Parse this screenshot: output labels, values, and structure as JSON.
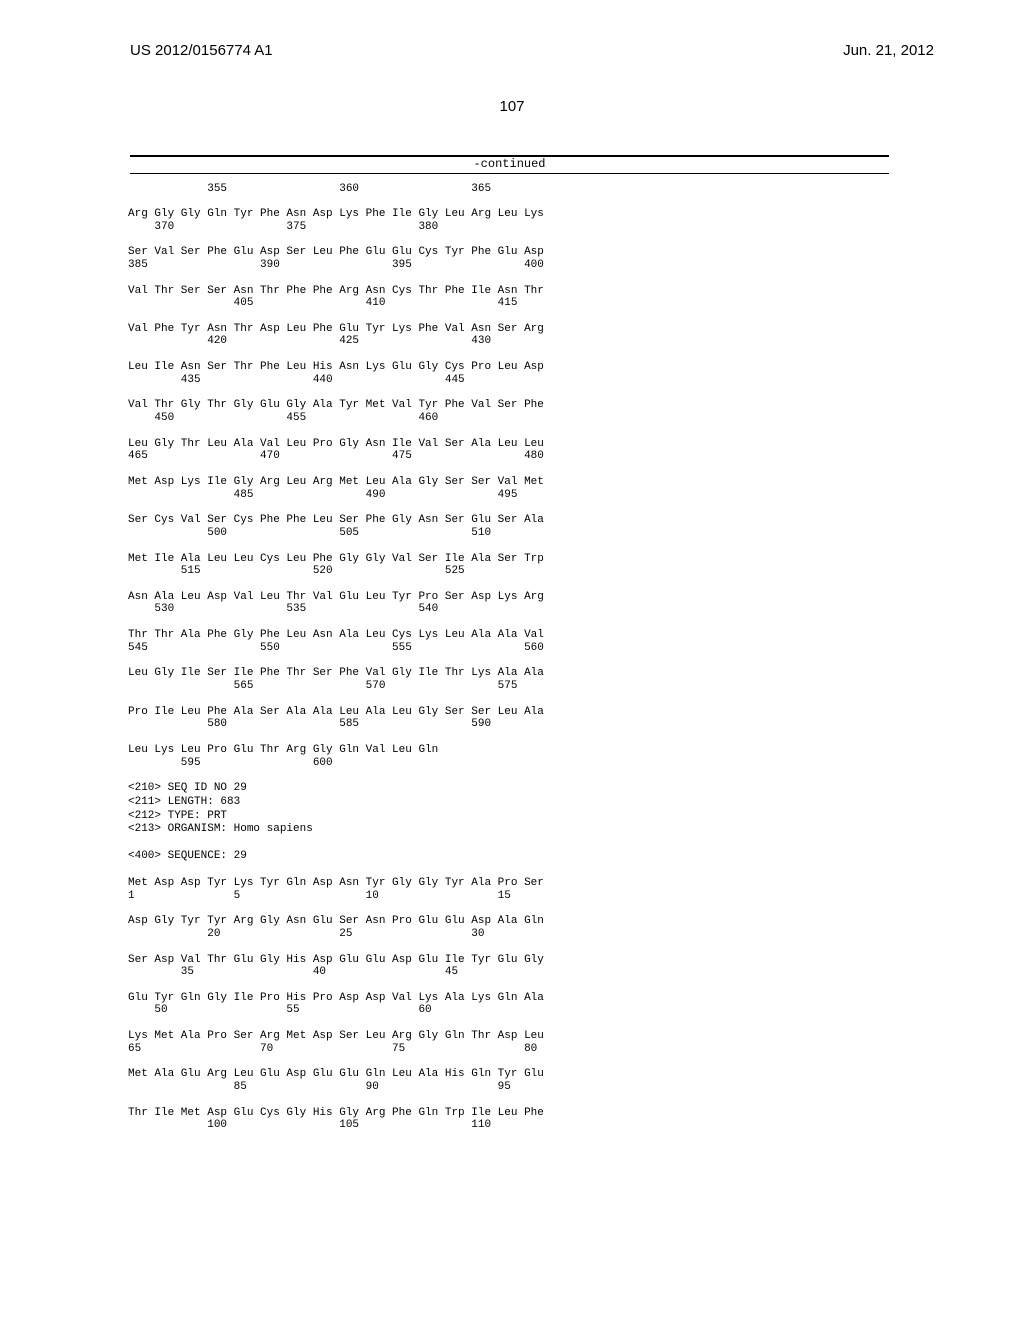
{
  "header": {
    "pub_number": "US 2012/0156774 A1",
    "pub_date": "Jun. 21, 2012"
  },
  "page_number": "107",
  "continued_label": "-continued",
  "sequence_blocks": [
    {
      "type": "numline",
      "line": "            355                 360                 365"
    },
    {
      "type": "seq",
      "aa": "Arg Gly Gly Gln Tyr Phe Asn Asp Lys Phe Ile Gly Leu Arg Leu Lys",
      "num": "    370                 375                 380"
    },
    {
      "type": "seq",
      "aa": "Ser Val Ser Phe Glu Asp Ser Leu Phe Glu Glu Cys Tyr Phe Glu Asp",
      "num": "385                 390                 395                 400"
    },
    {
      "type": "seq",
      "aa": "Val Thr Ser Ser Asn Thr Phe Phe Arg Asn Cys Thr Phe Ile Asn Thr",
      "num": "                405                 410                 415"
    },
    {
      "type": "seq",
      "aa": "Val Phe Tyr Asn Thr Asp Leu Phe Glu Tyr Lys Phe Val Asn Ser Arg",
      "num": "            420                 425                 430"
    },
    {
      "type": "seq",
      "aa": "Leu Ile Asn Ser Thr Phe Leu His Asn Lys Glu Gly Cys Pro Leu Asp",
      "num": "        435                 440                 445"
    },
    {
      "type": "seq",
      "aa": "Val Thr Gly Thr Gly Glu Gly Ala Tyr Met Val Tyr Phe Val Ser Phe",
      "num": "    450                 455                 460"
    },
    {
      "type": "seq",
      "aa": "Leu Gly Thr Leu Ala Val Leu Pro Gly Asn Ile Val Ser Ala Leu Leu",
      "num": "465                 470                 475                 480"
    },
    {
      "type": "seq",
      "aa": "Met Asp Lys Ile Gly Arg Leu Arg Met Leu Ala Gly Ser Ser Val Met",
      "num": "                485                 490                 495"
    },
    {
      "type": "seq",
      "aa": "Ser Cys Val Ser Cys Phe Phe Leu Ser Phe Gly Asn Ser Glu Ser Ala",
      "num": "            500                 505                 510"
    },
    {
      "type": "seq",
      "aa": "Met Ile Ala Leu Leu Cys Leu Phe Gly Gly Val Ser Ile Ala Ser Trp",
      "num": "        515                 520                 525"
    },
    {
      "type": "seq",
      "aa": "Asn Ala Leu Asp Val Leu Thr Val Glu Leu Tyr Pro Ser Asp Lys Arg",
      "num": "    530                 535                 540"
    },
    {
      "type": "seq",
      "aa": "Thr Thr Ala Phe Gly Phe Leu Asn Ala Leu Cys Lys Leu Ala Ala Val",
      "num": "545                 550                 555                 560"
    },
    {
      "type": "seq",
      "aa": "Leu Gly Ile Ser Ile Phe Thr Ser Phe Val Gly Ile Thr Lys Ala Ala",
      "num": "                565                 570                 575"
    },
    {
      "type": "seq",
      "aa": "Pro Ile Leu Phe Ala Ser Ala Ala Leu Ala Leu Gly Ser Ser Leu Ala",
      "num": "            580                 585                 590"
    },
    {
      "type": "seq",
      "aa": "Leu Lys Leu Pro Glu Thr Arg Gly Gln Val Leu Gln",
      "num": "        595                 600"
    },
    {
      "type": "meta",
      "lines": [
        "<210> SEQ ID NO 29",
        "<211> LENGTH: 683",
        "<212> TYPE: PRT",
        "<213> ORGANISM: Homo sapiens"
      ]
    },
    {
      "type": "meta",
      "lines": [
        "<400> SEQUENCE: 29"
      ]
    },
    {
      "type": "seq",
      "aa": "Met Asp Asp Tyr Lys Tyr Gln Asp Asn Tyr Gly Gly Tyr Ala Pro Ser",
      "num": "1               5                   10                  15"
    },
    {
      "type": "seq",
      "aa": "Asp Gly Tyr Tyr Arg Gly Asn Glu Ser Asn Pro Glu Glu Asp Ala Gln",
      "num": "            20                  25                  30"
    },
    {
      "type": "seq",
      "aa": "Ser Asp Val Thr Glu Gly His Asp Glu Glu Asp Glu Ile Tyr Glu Gly",
      "num": "        35                  40                  45"
    },
    {
      "type": "seq",
      "aa": "Glu Tyr Gln Gly Ile Pro His Pro Asp Asp Val Lys Ala Lys Gln Ala",
      "num": "    50                  55                  60"
    },
    {
      "type": "seq",
      "aa": "Lys Met Ala Pro Ser Arg Met Asp Ser Leu Arg Gly Gln Thr Asp Leu",
      "num": "65                  70                  75                  80"
    },
    {
      "type": "seq",
      "aa": "Met Ala Glu Arg Leu Glu Asp Glu Glu Gln Leu Ala His Gln Tyr Glu",
      "num": "                85                  90                  95"
    },
    {
      "type": "seq",
      "aa": "Thr Ile Met Asp Glu Cys Gly His Gly Arg Phe Gln Trp Ile Leu Phe",
      "num": "            100                 105                 110"
    }
  ]
}
